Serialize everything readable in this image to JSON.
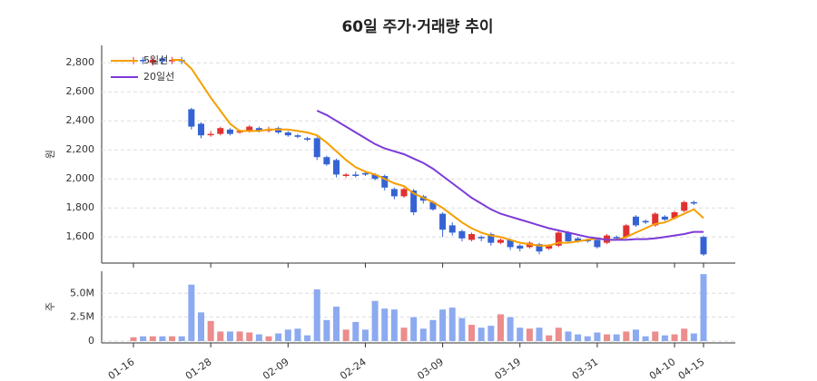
{
  "chart_data": {
    "type": "candlestick",
    "title": "60일 주가·거래량 추이",
    "categories": [
      "01-16",
      null,
      null,
      null,
      null,
      null,
      null,
      null,
      "01-28",
      null,
      null,
      null,
      null,
      null,
      null,
      null,
      "02-09",
      null,
      null,
      null,
      null,
      null,
      null,
      null,
      "02-24",
      null,
      null,
      null,
      null,
      null,
      null,
      null,
      "03-09",
      null,
      null,
      null,
      null,
      null,
      null,
      null,
      "03-19",
      null,
      null,
      null,
      null,
      null,
      null,
      null,
      "03-31",
      null,
      null,
      null,
      null,
      null,
      null,
      null,
      "04-10",
      null,
      null,
      "04-15"
    ],
    "open": [
      2810,
      2820,
      2800,
      2830,
      2810,
      2820,
      2480,
      2380,
      2310,
      2310,
      2340,
      2320,
      2330,
      2350,
      2340,
      2350,
      2320,
      2300,
      2280,
      2280,
      2150,
      2130,
      2020,
      2030,
      2040,
      2030,
      2020,
      1930,
      1880,
      1920,
      1880,
      1840,
      1760,
      1680,
      1640,
      1580,
      1600,
      1620,
      1560,
      1580,
      1540,
      1530,
      1550,
      1520,
      1540,
      1630,
      1590,
      1580,
      1580,
      1560,
      1600,
      1600,
      1740,
      1710,
      1680,
      1740,
      1730,
      1780,
      1840,
      1600
    ],
    "high": [
      2840,
      2840,
      2840,
      2850,
      2840,
      2840,
      2490,
      2390,
      2330,
      2360,
      2350,
      2340,
      2370,
      2360,
      2360,
      2360,
      2330,
      2310,
      2290,
      2290,
      2160,
      2140,
      2040,
      2050,
      2050,
      2040,
      2030,
      1940,
      1940,
      1930,
      1890,
      1850,
      1770,
      1700,
      1650,
      1630,
      1610,
      1630,
      1590,
      1590,
      1550,
      1570,
      1560,
      1550,
      1640,
      1640,
      1600,
      1590,
      1590,
      1620,
      1610,
      1690,
      1750,
      1720,
      1770,
      1750,
      1780,
      1850,
      1850,
      1610
    ],
    "low": [
      2790,
      2790,
      2780,
      2790,
      2790,
      2790,
      2340,
      2280,
      2290,
      2300,
      2300,
      2310,
      2320,
      2320,
      2320,
      2310,
      2290,
      2280,
      2260,
      2130,
      2090,
      2010,
      2010,
      2010,
      2020,
      1990,
      1920,
      1860,
      1870,
      1750,
      1830,
      1780,
      1600,
      1610,
      1570,
      1570,
      1570,
      1540,
      1550,
      1510,
      1500,
      1520,
      1480,
      1510,
      1530,
      1560,
      1560,
      1560,
      1520,
      1550,
      1580,
      1590,
      1670,
      1690,
      1670,
      1710,
      1720,
      1770,
      1820,
      1470
    ],
    "close": [
      2820,
      2810,
      2820,
      2810,
      2820,
      2810,
      2360,
      2300,
      2310,
      2350,
      2310,
      2330,
      2360,
      2330,
      2340,
      2320,
      2300,
      2290,
      2270,
      2150,
      2100,
      2030,
      2030,
      2020,
      2030,
      2000,
      1940,
      1880,
      1930,
      1770,
      1850,
      1790,
      1650,
      1630,
      1590,
      1620,
      1590,
      1560,
      1580,
      1530,
      1520,
      1560,
      1500,
      1540,
      1630,
      1570,
      1570,
      1570,
      1530,
      1610,
      1590,
      1680,
      1680,
      1700,
      1760,
      1720,
      1770,
      1840,
      1830,
      1480
    ],
    "up_color": "#e03131",
    "down_color": "#3563d4",
    "ylabel": "원",
    "ylim": [
      1420,
      2920
    ],
    "yticks": [
      {
        "value": 1600,
        "label": "1,600"
      },
      {
        "value": 1800,
        "label": "1,800"
      },
      {
        "value": 2000,
        "label": "2,000"
      },
      {
        "value": 2200,
        "label": "2,200"
      },
      {
        "value": 2400,
        "label": "2,400"
      },
      {
        "value": 2600,
        "label": "2,600"
      },
      {
        "value": 2800,
        "label": "2,800"
      }
    ],
    "grid": true,
    "legend": "upper left",
    "series": [
      {
        "name": "5일선",
        "color": "#f59f00",
        "values": [
          null,
          null,
          null,
          null,
          2820,
          2820,
          2760,
          2660,
          2560,
          2470,
          2380,
          2330,
          2330,
          2330,
          2340,
          2340,
          2340,
          2330,
          2320,
          2300,
          2250,
          2190,
          2130,
          2080,
          2050,
          2030,
          2000,
          1970,
          1950,
          1900,
          1870,
          1840,
          1800,
          1750,
          1700,
          1660,
          1630,
          1610,
          1600,
          1580,
          1560,
          1550,
          1540,
          1540,
          1560,
          1560,
          1570,
          1580,
          1590,
          1580,
          1580,
          1600,
          1630,
          1660,
          1690,
          1700,
          1730,
          1760,
          1790,
          1730
        ]
      },
      {
        "name": "20일선",
        "color": "#7c3ad8",
        "values": [
          null,
          null,
          null,
          null,
          null,
          null,
          null,
          null,
          null,
          null,
          null,
          null,
          null,
          null,
          null,
          null,
          null,
          null,
          null,
          2470,
          2440,
          2400,
          2360,
          2320,
          2280,
          2240,
          2210,
          2190,
          2170,
          2140,
          2110,
          2070,
          2020,
          1970,
          1920,
          1870,
          1830,
          1790,
          1760,
          1740,
          1720,
          1700,
          1680,
          1660,
          1645,
          1630,
          1615,
          1600,
          1590,
          1580,
          1580,
          1580,
          1585,
          1585,
          1590,
          1600,
          1610,
          1620,
          1635,
          1635
        ]
      }
    ],
    "volume": {
      "ylabel": "주",
      "ylim": [
        0,
        7300000
      ],
      "yticks": [
        {
          "value": 0,
          "label": "0"
        },
        {
          "value": 2500000,
          "label": "2.5M"
        },
        {
          "value": 5000000,
          "label": "5.0M"
        }
      ],
      "up_color": "#ec8c8c",
      "down_color": "#8caaf0",
      "values": [
        400000,
        500000,
        500000,
        500000,
        500000,
        500000,
        5900000,
        3000000,
        2100000,
        1000000,
        1000000,
        1000000,
        900000,
        700000,
        500000,
        800000,
        1200000,
        1300000,
        600000,
        5400000,
        2200000,
        3600000,
        1200000,
        2000000,
        1200000,
        4200000,
        3400000,
        3300000,
        1400000,
        2500000,
        1300000,
        2200000,
        3300000,
        3500000,
        2400000,
        1700000,
        1400000,
        1600000,
        2800000,
        2500000,
        1400000,
        1300000,
        1400000,
        600000,
        1400000,
        1000000,
        700000,
        500000,
        900000,
        700000,
        700000,
        1000000,
        1200000,
        500000,
        1000000,
        600000,
        700000,
        1300000,
        800000,
        7000000
      ]
    }
  }
}
